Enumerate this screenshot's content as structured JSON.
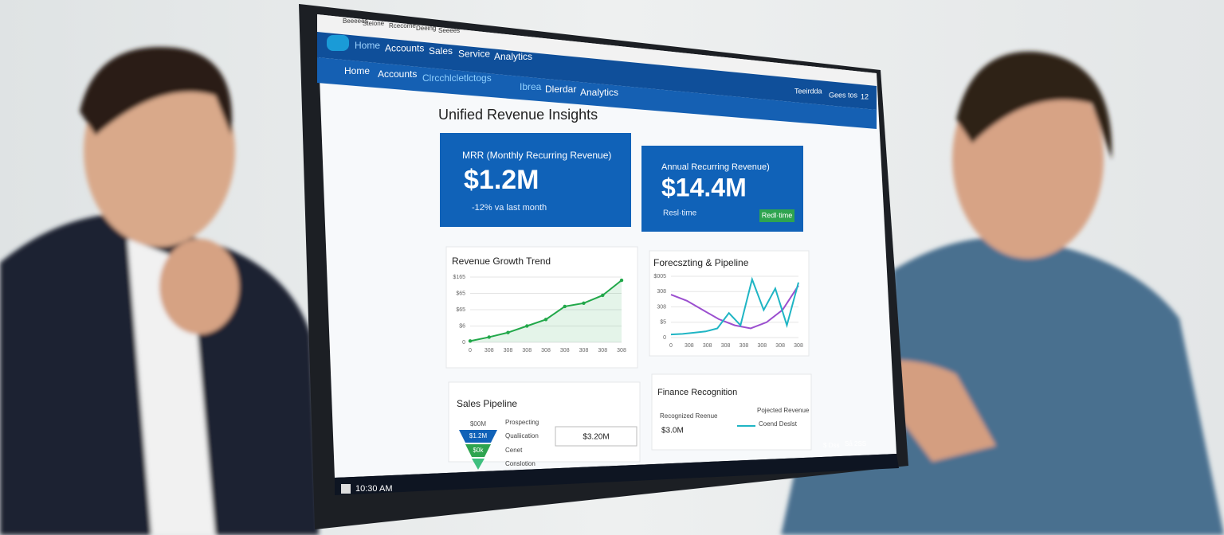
{
  "browser_tabs": [
    "Beeeees",
    "Steione",
    "Rcecome",
    "Deeing",
    "Seeees"
  ],
  "nav_primary": [
    "Home",
    "Accounts",
    "Sales",
    "Service",
    "Analytics"
  ],
  "nav_secondary": [
    "Home",
    "Accounts",
    "Clrcchlcletlctogs",
    "Ibrea",
    "Dlerdar",
    "Analytics"
  ],
  "nav_right": [
    "Teeirdda",
    "Gees tos",
    "12"
  ],
  "dashboard": {
    "title": "Unified Revenue Insights",
    "cards": [
      {
        "label": "MRR (Monthly Recurring Revenue)",
        "value": "$1.2M",
        "note": "-12% va last month"
      },
      {
        "label": "Annual Recurring Revenue)",
        "value": "$14.4M",
        "note": "Resl·time",
        "badge": "Redl·time"
      }
    ],
    "growth_chart": {
      "type": "line",
      "title": "Revenue Growth Trend",
      "y_labels": [
        "$165",
        "$65",
        "$65",
        "$6",
        "0"
      ],
      "x_labels": [
        "0",
        "308",
        "308",
        "308",
        "308",
        "308",
        "308",
        "308",
        "308"
      ],
      "ylim": [
        0,
        100
      ],
      "color": "#22a84a",
      "values": [
        2,
        8,
        15,
        25,
        35,
        55,
        60,
        72,
        95
      ]
    },
    "forecast_chart": {
      "type": "line",
      "title": "Forecszting & Pipeline",
      "y_labels": [
        "$005",
        "308",
        "308",
        "$5",
        "0"
      ],
      "x_labels": [
        "0",
        "308",
        "308",
        "308",
        "308",
        "308",
        "308",
        "308"
      ],
      "ylim": [
        0,
        100
      ],
      "series": [
        {
          "color": "#9b4fcf",
          "values": [
            70,
            60,
            45,
            30,
            20,
            15,
            25,
            45,
            85
          ]
        },
        {
          "color": "#1fb5c4",
          "values": [
            5,
            6,
            8,
            10,
            15,
            40,
            20,
            95,
            45,
            80,
            20,
            90
          ]
        }
      ]
    },
    "pipeline": {
      "title": "Sales Pipeline",
      "funnel": [
        "$00M",
        "$1.2M",
        "$0k"
      ],
      "stages": [
        "Prospecting",
        "Qualiication",
        "Cenet",
        "Conslotion"
      ],
      "total": "$3.20M"
    },
    "finance": {
      "title": "Finance Recognition",
      "recognized_label": "Recognized Reenue",
      "recognized_value": "$3.0M",
      "projected_label": "Pojected Revenue",
      "legend": "Coend Deslst"
    }
  },
  "taskbar": {
    "time": "10:30 AM",
    "tray": [
      "$ Dss",
      "Så 2SS"
    ]
  }
}
